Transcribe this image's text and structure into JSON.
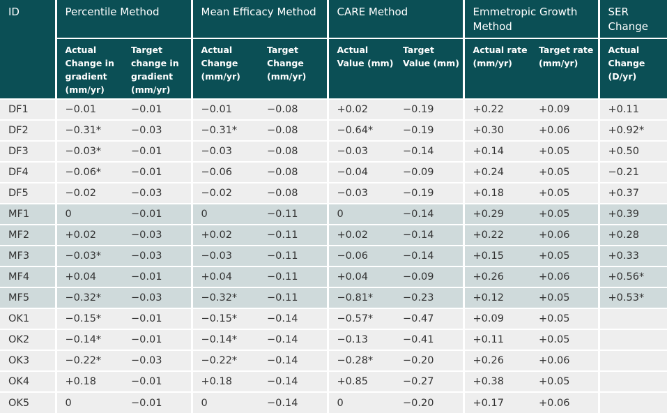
{
  "header": {
    "id": "ID",
    "groups": [
      "Percentile Method",
      "Mean Efficacy Method",
      "CARE Method",
      "Emmetropic Growth Method",
      "SER Change"
    ],
    "subheaders": [
      "Actual Change in gradient (mm/yr)",
      "Target change in gradient (mm/yr)",
      "Actual Change (mm/yr)",
      "Target Change (mm/yr)",
      "Actual Value (mm)",
      "Target Value (mm)",
      "Actual rate (mm/yr)",
      "Target rate (mm/yr)",
      "Actual Change (D/yr)"
    ]
  },
  "rows": [
    [
      "DF1",
      "−0.01",
      "−0.01",
      "−0.01",
      "−0.08",
      "+0.02",
      "−0.19",
      "+0.22",
      "+0.09",
      "+0.11"
    ],
    [
      "DF2",
      "−0.31*",
      "−0.03",
      "−0.31*",
      "−0.08",
      "−0.64*",
      "−0.19",
      "+0.30",
      "+0.06",
      "+0.92*"
    ],
    [
      "DF3",
      "−0.03*",
      "−0.01",
      "−0.03",
      "−0.08",
      "−0.03",
      "−0.14",
      "+0.14",
      "+0.05",
      "+0.50"
    ],
    [
      "DF4",
      "−0.06*",
      "−0.01",
      "−0.06",
      "−0.08",
      "−0.04",
      "−0.09",
      "+0.24",
      "+0.05",
      "−0.21"
    ],
    [
      "DF5",
      "−0.02",
      "−0.03",
      "−0.02",
      "−0.08",
      "−0.03",
      "−0.19",
      "+0.18",
      "+0.05",
      "+0.37"
    ],
    [
      "MF1",
      "0",
      "−0.01",
      "0",
      "−0.11",
      "0",
      "−0.14",
      "+0.29",
      "+0.05",
      "+0.39"
    ],
    [
      "MF2",
      "+0.02",
      "−0.03",
      "+0.02",
      "−0.11",
      "+0.02",
      "−0.14",
      "+0.22",
      "+0.06",
      "+0.28"
    ],
    [
      "MF3",
      "−0.03*",
      "−0.03",
      "−0.03",
      "−0.11",
      "−0.06",
      "−0.14",
      "+0.15",
      "+0.05",
      "+0.33"
    ],
    [
      "MF4",
      "+0.04",
      "−0.01",
      "+0.04",
      "−0.11",
      "+0.04",
      "−0.09",
      "+0.26",
      "+0.06",
      "+0.56*"
    ],
    [
      "MF5",
      "−0.32*",
      "−0.03",
      "−0.32*",
      "−0.11",
      "−0.81*",
      "−0.23",
      "+0.12",
      "+0.05",
      "+0.53*"
    ],
    [
      "OK1",
      "−0.15*",
      "−0.01",
      "−0.15*",
      "−0.14",
      "−0.57*",
      "−0.47",
      "+0.09",
      "+0.05",
      ""
    ],
    [
      "OK2",
      "−0.14*",
      "−0.01",
      "−0.14*",
      "−0.14",
      "−0.13",
      "−0.41",
      "+0.11",
      "+0.05",
      ""
    ],
    [
      "OK3",
      "−0.22*",
      "−0.03",
      "−0.22*",
      "−0.14",
      "−0.28*",
      "−0.20",
      "+0.26",
      "+0.06",
      ""
    ],
    [
      "OK4",
      "+0.18",
      "−0.01",
      "+0.18",
      "−0.14",
      "+0.85",
      "−0.27",
      "+0.38",
      "+0.05",
      ""
    ],
    [
      "OK5",
      "0",
      "−0.01",
      "0",
      "−0.14",
      "0",
      "−0.20",
      "+0.17",
      "+0.06",
      ""
    ]
  ],
  "colors": {
    "header_bg": "#0b4f55",
    "row_light": "#eeeeee",
    "row_dark": "#cfdadb"
  }
}
